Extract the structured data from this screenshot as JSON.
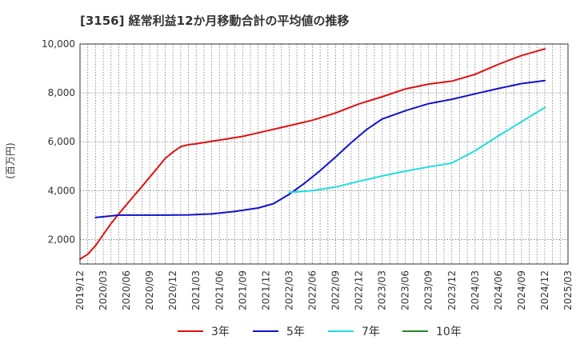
{
  "chart_data": {
    "type": "line",
    "title": "[3156]  経常利益12か月移動合計の平均値の推移",
    "ylabel": "(百万円)",
    "xlabel": "",
    "ylim": [
      1000,
      10000
    ],
    "yticks": [
      2000,
      4000,
      6000,
      8000,
      10000
    ],
    "ytick_labels": [
      "2,000",
      "4,000",
      "6,000",
      "8,000",
      "10,000"
    ],
    "xlim": [
      "2019-12",
      "2025-03"
    ],
    "xticks": [
      "2019/12",
      "2020/03",
      "2020/06",
      "2020/09",
      "2020/12",
      "2021/03",
      "2021/06",
      "2021/09",
      "2021/12",
      "2022/03",
      "2022/06",
      "2022/09",
      "2022/12",
      "2023/03",
      "2023/06",
      "2023/09",
      "2023/12",
      "2024/03",
      "2024/06",
      "2024/09",
      "2024/12",
      "2025/03"
    ],
    "grid": true,
    "legend_position": "bottom",
    "series": [
      {
        "name": "3年",
        "color": "#dd1111",
        "x": [
          "2019-12",
          "2020-01",
          "2020-02",
          "2020-03",
          "2020-04",
          "2020-05",
          "2020-06",
          "2020-07",
          "2020-08",
          "2020-09",
          "2020-10",
          "2020-11",
          "2020-12",
          "2021-01",
          "2021-02",
          "2021-03",
          "2021-06",
          "2021-09",
          "2021-12",
          "2022-03",
          "2022-06",
          "2022-09",
          "2022-12",
          "2023-03",
          "2023-06",
          "2023-09",
          "2023-12",
          "2024-03",
          "2024-06",
          "2024-09",
          "2024-12"
        ],
        "values": [
          1200,
          1400,
          1750,
          2200,
          2650,
          3050,
          3430,
          3800,
          4170,
          4550,
          4930,
          5320,
          5580,
          5800,
          5880,
          5920,
          6070,
          6220,
          6440,
          6660,
          6880,
          7180,
          7550,
          7840,
          8160,
          8360,
          8480,
          8760,
          9170,
          9530,
          9800
        ]
      },
      {
        "name": "5年",
        "color": "#1111cc",
        "x": [
          "2020-02",
          "2020-05",
          "2020-08",
          "2020-11",
          "2021-02",
          "2021-05",
          "2021-08",
          "2021-11",
          "2022-01",
          "2022-03",
          "2022-05",
          "2022-07",
          "2022-09",
          "2022-11",
          "2023-01",
          "2023-03",
          "2023-06",
          "2023-09",
          "2023-12",
          "2024-03",
          "2024-06",
          "2024-09",
          "2024-12"
        ],
        "values": [
          2900,
          3000,
          3000,
          3000,
          3010,
          3050,
          3150,
          3290,
          3470,
          3850,
          4310,
          4820,
          5380,
          5960,
          6500,
          6930,
          7270,
          7560,
          7740,
          7960,
          8180,
          8380,
          8500
        ]
      },
      {
        "name": "7年",
        "color": "#22dddd",
        "x": [
          "2022-03",
          "2022-06",
          "2022-09",
          "2022-12",
          "2023-03",
          "2023-06",
          "2023-09",
          "2023-12",
          "2024-03",
          "2024-06",
          "2024-09",
          "2024-12"
        ],
        "values": [
          3930,
          4000,
          4150,
          4380,
          4600,
          4800,
          4970,
          5130,
          5630,
          6240,
          6820,
          7400
        ]
      },
      {
        "name": "10年",
        "color": "#228822",
        "x": [],
        "values": []
      }
    ]
  }
}
